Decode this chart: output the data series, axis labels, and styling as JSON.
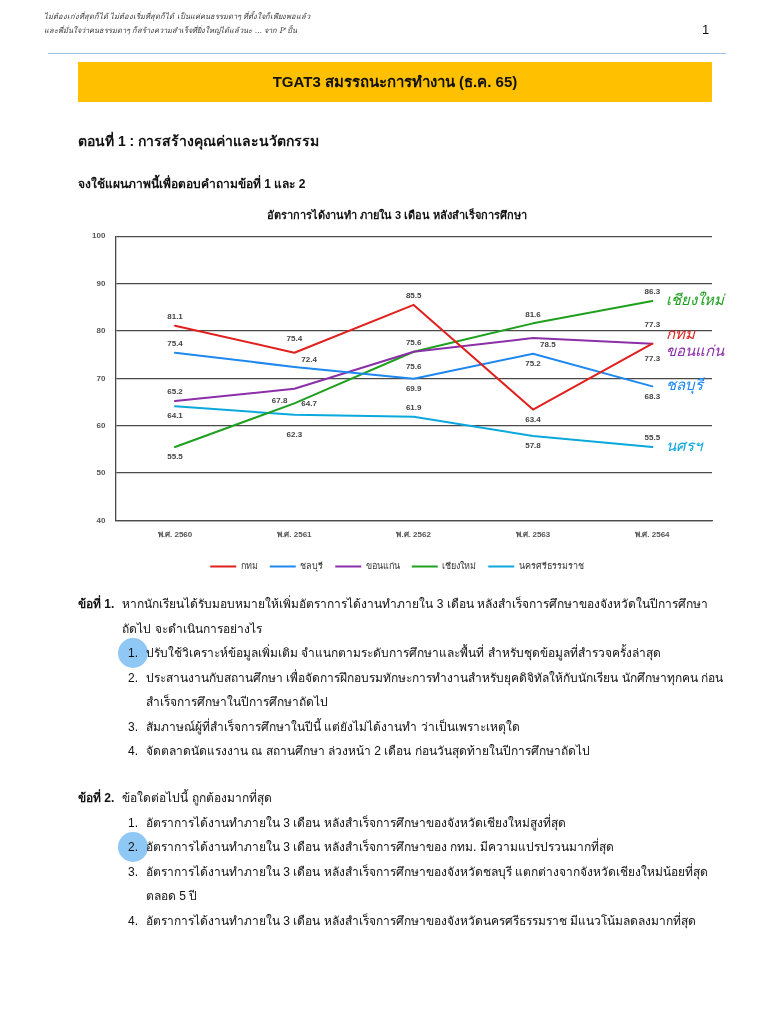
{
  "chart_data": {
    "type": "line",
    "title": "อัตราการได้งานทำ ภายใน 3 เดือน หลังสำเร็จการศึกษา",
    "categories": [
      "พ.ศ. 2560",
      "พ.ศ. 2561",
      "พ.ศ. 2562",
      "พ.ศ. 2563",
      "พ.ศ. 2564"
    ],
    "series": [
      {
        "name": "กทม",
        "color": "#e0201c",
        "values": [
          81.1,
          75.4,
          85.5,
          63.4,
          77.3
        ]
      },
      {
        "name": "ชลบุรี",
        "color": "#1e88f0",
        "values": [
          75.4,
          72.4,
          69.9,
          75.2,
          68.3
        ]
      },
      {
        "name": "ขอนแก่น",
        "color": "#8b2fa8",
        "values": [
          65.2,
          67.8,
          75.6,
          78.5,
          77.3
        ]
      },
      {
        "name": "เชียงใหม่",
        "color": "#1ea01e",
        "values": [
          55.5,
          64.7,
          75.6,
          81.6,
          86.3
        ]
      },
      {
        "name": "นครศรีธรรมราช",
        "color": "#0aa8dc",
        "values": [
          64.1,
          62.3,
          61.9,
          57.8,
          55.5
        ]
      }
    ],
    "ylim": [
      40,
      100
    ],
    "yticks": [
      40,
      50,
      60,
      70,
      80,
      90,
      100
    ],
    "grid": "y",
    "legend": "bottom",
    "data_labels": true,
    "annotations": [
      "ไม่ต้องเก่งที่สุดก็ได้ ไม่ต้องเริ่มที่สุดก็ได้ เป็นแค่คนธรรมดาๆ ที่ตั้งใจก็เพียงพอแล้ว",
      "และพี่มั่นใจว่าคนธรรมดาๆ ก็สร้างความสำเร็จที่ยิ่งใหญ่ได้แล้วนะ ... จาก P'ปั้น",
      "1",
      "TGAT3 สมรรถนะการทำงาน (ธ.ค. 65)",
      "ตอนที่ 1 : การสร้างคุณค่าและนวัตกรรม",
      "จงใช้แผนภาพนี้เพื่อตอบคำถามข้อที่ 1 และ 2",
      "ข้อที่ 1.",
      "หากนักเรียนได้รับมอบหมายให้เพิ่มอัตราการได้งานทำภายใน 3 เดือน หลังสำเร็จการศึกษาของจังหวัดในปีการศึกษาถัดไป จะดำเนินการอย่างไร",
      "1.",
      "ปรับใช้วิเคราะห์ข้อมูลเพิ่มเติม จำแนกตามระดับการศึกษาและพื้นที่ สำหรับชุดข้อมูลที่สำรวจครั้งล่าสุด",
      "2.",
      "ประสานงานกับสถานศึกษา เพื่อจัดการฝึกอบรมทักษะการทำงานสำหรับยุคดิจิทัลให้กับนักเรียน นักศึกษาทุกคน ก่อนสำเร็จการศึกษาในปีการศึกษาถัดไป",
      "3.",
      "สัมภาษณ์ผู้ที่สำเร็จการศึกษาในปีนี้ แต่ยังไม่ได้งานทำ ว่าเป็นเพราะเหตุใด",
      "4.",
      "จัดตลาดนัดแรงงาน ณ สถานศึกษา ล่วงหน้า 2 เดือน ก่อนวันสุดท้ายในปีการศึกษาถัดไป",
      "ข้อที่ 2.",
      "ข้อใดต่อไปนี้ ถูกต้องมากที่สุด",
      "1.",
      "อัตราการได้งานทำภายใน 3 เดือน หลังสำเร็จการศึกษาของจังหวัดเชียงใหม่สูงที่สุด",
      "2.",
      "อัตราการได้งานทำภายใน 3 เดือน หลังสำเร็จการศึกษาของ กทม. มีความแปรปรวนมากที่สุด",
      "3.",
      "อัตราการได้งานทำภายใน 3 เดือน หลังสำเร็จการศึกษาของจังหวัดชลบุรี แตกต่างจากจังหวัดเชียงใหม่น้อยที่สุด ตลอด 5 ปี",
      "4.",
      "อัตราการได้งานทำภายใน 3 เดือน หลังสำเร็จการศึกษาของจังหวัดนครศรีธรรมราช มีแนวโน้มลดลงมากที่สุด",
      {
        "text": "เชียงใหม่",
        "x": "พ.ศ. 2564",
        "y": 86.3
      },
      {
        "text": "กทม",
        "x": "พ.ศ. 2564",
        "y": 77.3
      },
      {
        "text": "ขอนแก่น",
        "x": "พ.ศ. 2564",
        "y": 77.3
      },
      {
        "text": "ชลบุรี",
        "x": "พ.ศ. 2564",
        "y": 68.3
      },
      {
        "text": "นศรฯ",
        "x": "พ.ศ. 2564",
        "y": 55.5
      }
    ]
  }
}
